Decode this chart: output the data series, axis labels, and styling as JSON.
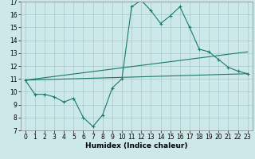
{
  "xlabel": "Humidex (Indice chaleur)",
  "x": [
    0,
    1,
    2,
    3,
    4,
    5,
    6,
    7,
    8,
    9,
    10,
    11,
    12,
    13,
    14,
    15,
    16,
    17,
    18,
    19,
    20,
    21,
    22,
    23
  ],
  "line1": [
    10.9,
    9.8,
    9.8,
    9.6,
    9.2,
    9.5,
    8.0,
    7.3,
    8.2,
    10.3,
    11.0,
    16.6,
    17.1,
    16.3,
    15.3,
    15.9,
    16.6,
    15.0,
    13.3,
    13.1,
    12.5,
    11.9,
    11.6,
    11.4
  ],
  "line2_start": 10.9,
  "line2_end": 13.1,
  "line3_start": 10.9,
  "line3_end": 11.4,
  "ylim": [
    7,
    17
  ],
  "xlim": [
    -0.5,
    23.5
  ],
  "yticks": [
    7,
    8,
    9,
    10,
    11,
    12,
    13,
    14,
    15,
    16,
    17
  ],
  "xticks": [
    0,
    1,
    2,
    3,
    4,
    5,
    6,
    7,
    8,
    9,
    10,
    11,
    12,
    13,
    14,
    15,
    16,
    17,
    18,
    19,
    20,
    21,
    22,
    23
  ],
  "line_color": "#1a7a6a",
  "bg_color": "#cce8e8",
  "grid_color": "#aacece"
}
